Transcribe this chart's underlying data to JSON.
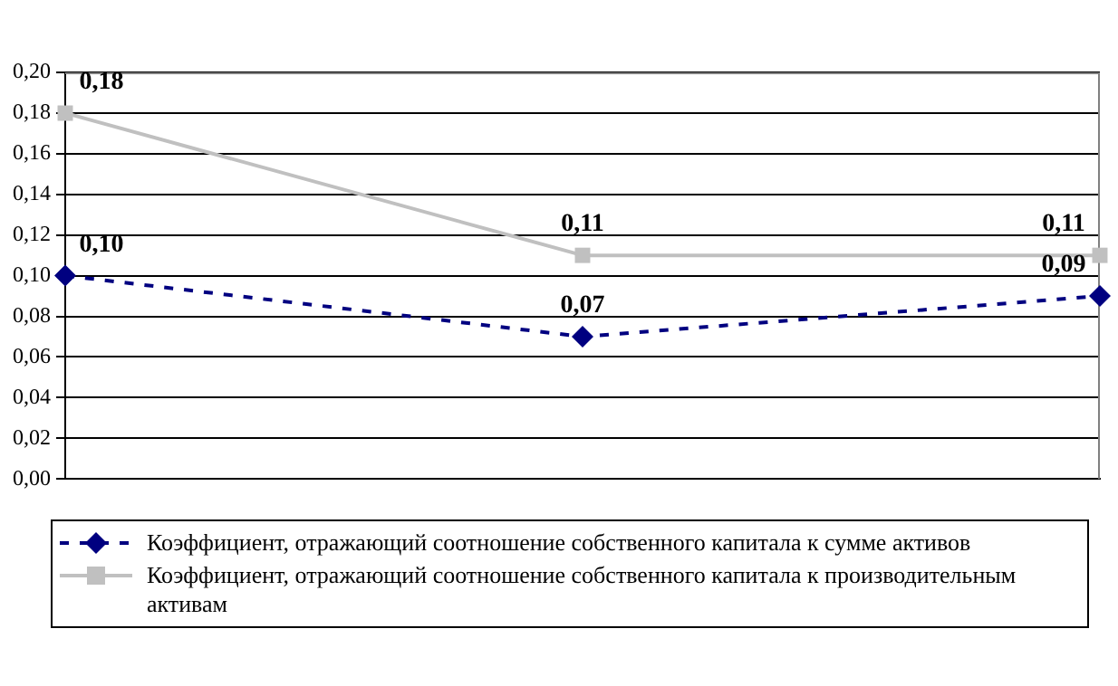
{
  "chart_data": {
    "type": "line",
    "categories": [
      null,
      null,
      null
    ],
    "series": [
      {
        "name": "Коэффициент, отражающий соотношение собственного капитала к сумме активов",
        "color": "#000080",
        "values": [
          0.1,
          0.07,
          0.09
        ],
        "value_labels": [
          "0,10",
          "0,07",
          "0,09"
        ],
        "marker": "diamond",
        "line_style": "dashed"
      },
      {
        "name": "Коэффициент, отражающий соотношение собственного капитала к производительным активам",
        "color": "#c0c0c0",
        "values": [
          0.18,
          0.11,
          0.11
        ],
        "value_labels": [
          "0,18",
          "0,11",
          "0,11"
        ],
        "marker": "square",
        "line_style": "solid"
      }
    ],
    "ylim": [
      0,
      0.2
    ],
    "yticks": [
      {
        "value": 0,
        "label": "0,00"
      },
      {
        "value": 0.02,
        "label": "0,02"
      },
      {
        "value": 0.04,
        "label": "0,04"
      },
      {
        "value": 0.06,
        "label": "0,06"
      },
      {
        "value": 0.08,
        "label": "0,08"
      },
      {
        "value": 0.1,
        "label": "0,10"
      },
      {
        "value": 0.12,
        "label": "0,12"
      },
      {
        "value": 0.14,
        "label": "0,14"
      },
      {
        "value": 0.16,
        "label": "0,16"
      },
      {
        "value": 0.18,
        "label": "0,18"
      },
      {
        "value": 0.2,
        "label": "0,20"
      }
    ],
    "grid": "y",
    "legend": "bottom"
  }
}
